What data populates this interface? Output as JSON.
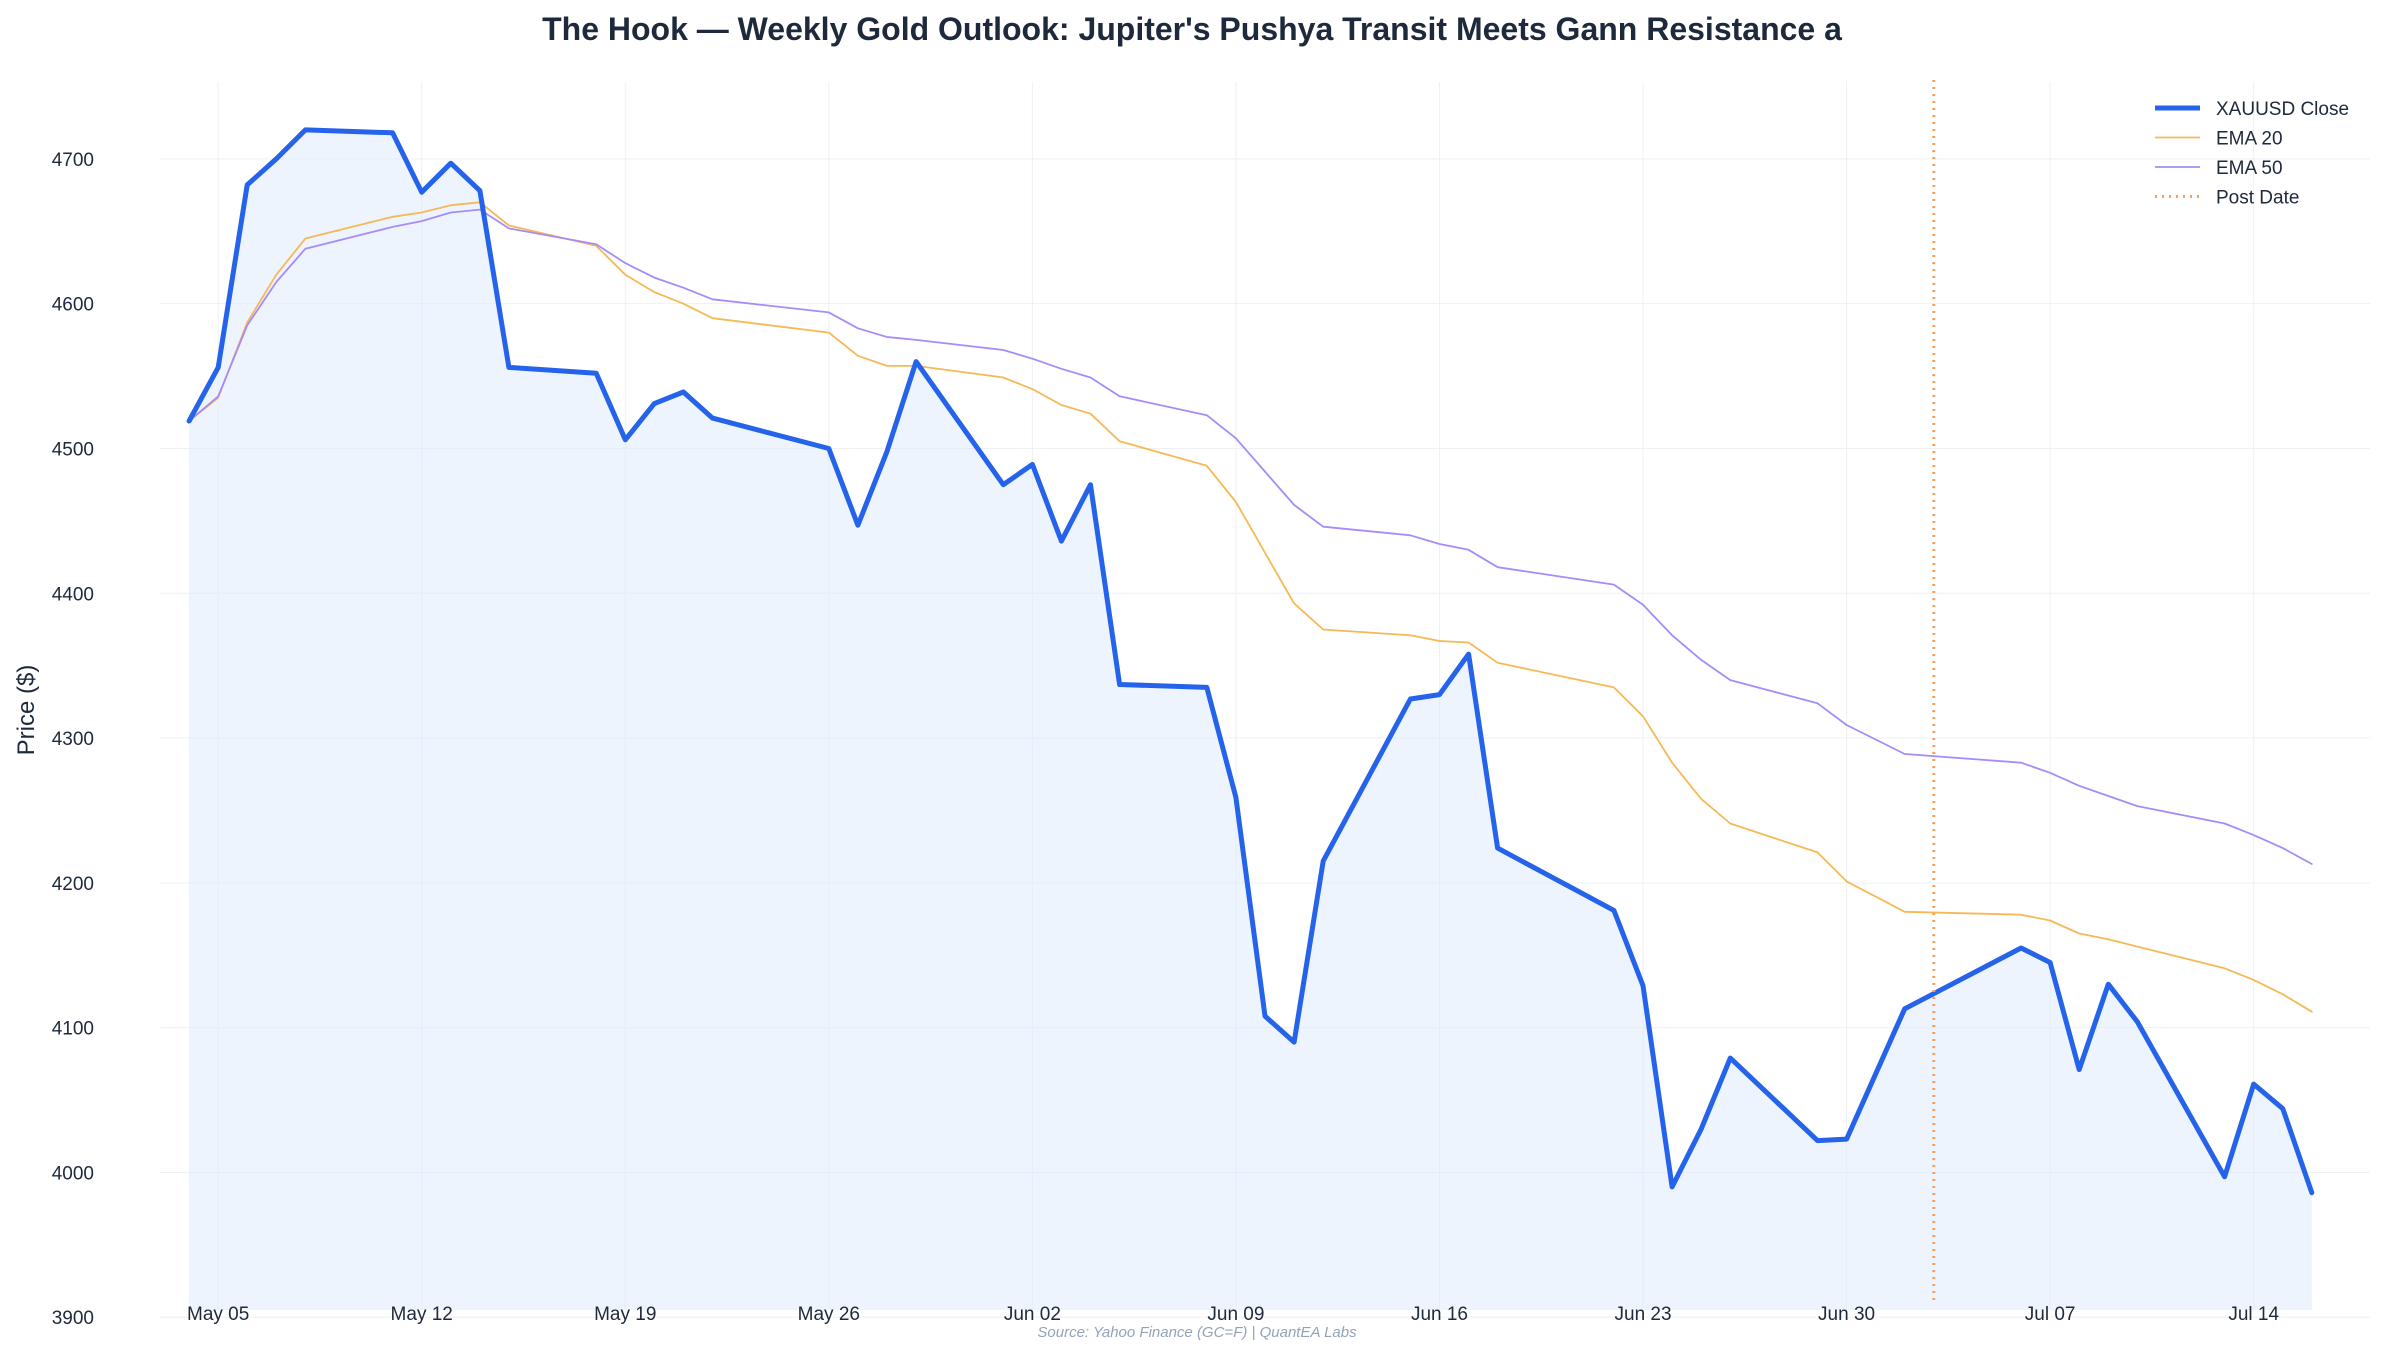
{
  "chart_data": {
    "type": "line",
    "title": "The Hook — Weekly Gold Outlook: Jupiter's Pushya Transit Meets Gann Resistance a",
    "xlabel": "",
    "ylabel": "Price ($)",
    "source": "Source: Yahoo Finance (GC=F) | QuantEA Labs",
    "ylim": [
      3905,
      4760
    ],
    "xlim": [
      "2025-05-03",
      "2025-07-18"
    ],
    "grid": true,
    "legend_position": "top-right",
    "x_ticks": [
      "2025-05-05",
      "2025-05-12",
      "2025-05-19",
      "2025-05-26",
      "2025-06-02",
      "2025-06-09",
      "2025-06-16",
      "2025-06-23",
      "2025-06-30",
      "2025-07-07",
      "2025-07-14"
    ],
    "x_tick_labels": [
      "May 05",
      "May 12",
      "May 19",
      "May 26",
      "Jun 02",
      "Jun 09",
      "Jun 16",
      "Jun 23",
      "Jun 30",
      "Jul 07",
      "Jul 14"
    ],
    "y_ticks": [
      3900,
      4000,
      4100,
      4200,
      4300,
      4400,
      4500,
      4600,
      4700
    ],
    "x": [
      "2025-05-04",
      "2025-05-05",
      "2025-05-06",
      "2025-05-07",
      "2025-05-08",
      "2025-05-11",
      "2025-05-12",
      "2025-05-13",
      "2025-05-14",
      "2025-05-15",
      "2025-05-18",
      "2025-05-19",
      "2025-05-20",
      "2025-05-21",
      "2025-05-22",
      "2025-05-26",
      "2025-05-27",
      "2025-05-28",
      "2025-05-29",
      "2025-06-01",
      "2025-06-02",
      "2025-06-03",
      "2025-06-04",
      "2025-06-05",
      "2025-06-08",
      "2025-06-09",
      "2025-06-10",
      "2025-06-11",
      "2025-06-12",
      "2025-06-15",
      "2025-06-16",
      "2025-06-17",
      "2025-06-18",
      "2025-06-22",
      "2025-06-23",
      "2025-06-24",
      "2025-06-25",
      "2025-06-26",
      "2025-06-29",
      "2025-06-30",
      "2025-07-02",
      "2025-07-06",
      "2025-07-07",
      "2025-07-08",
      "2025-07-09",
      "2025-07-10",
      "2025-07-13",
      "2025-07-14",
      "2025-07-15",
      "2025-07-16"
    ],
    "series": [
      {
        "name": "XAUUSD Close",
        "color": "#2563eb",
        "fill": true,
        "values": [
          4519,
          4556,
          4682,
          4700,
          4720,
          4718,
          4677,
          4697,
          4678,
          4556,
          4552,
          4506,
          4531,
          4539,
          4521,
          4500,
          4447,
          4498,
          4560,
          4475,
          4489,
          4436,
          4475,
          4337,
          4335,
          4259,
          4108,
          4090,
          4215,
          4327,
          4330,
          4358,
          4224,
          4181,
          4129,
          3990,
          4030,
          4079,
          4022,
          4023,
          4113,
          4155,
          4145,
          4071,
          4130,
          4104,
          3997,
          4061,
          4044,
          3986
        ]
      },
      {
        "name": "EMA 20",
        "color": "#f5b956",
        "values": [
          4519,
          4535,
          4587,
          4620,
          4645,
          4660,
          4663,
          4668,
          4670,
          4654,
          4640,
          4620,
          4608,
          4600,
          4590,
          4580,
          4564,
          4557,
          4557,
          4549,
          4541,
          4530,
          4524,
          4505,
          4488,
          4463,
          4428,
          4393,
          4375,
          4371,
          4367,
          4366,
          4352,
          4335,
          4315,
          4283,
          4258,
          4241,
          4221,
          4201,
          4180,
          4178,
          4174,
          4165,
          4161,
          4156,
          4141,
          4133,
          4123,
          4111
        ]
      },
      {
        "name": "EMA 50",
        "color": "#a78bfa",
        "values": [
          4519,
          4536,
          4585,
          4615,
          4638,
          4653,
          4657,
          4663,
          4665,
          4652,
          4641,
          4628,
          4618,
          4611,
          4603,
          4594,
          4583,
          4577,
          4575,
          4568,
          4562,
          4555,
          4549,
          4536,
          4523,
          4507,
          4484,
          4461,
          4446,
          4440,
          4434,
          4430,
          4418,
          4406,
          4392,
          4371,
          4354,
          4340,
          4324,
          4309,
          4289,
          4283,
          4276,
          4267,
          4260,
          4253,
          4241,
          4233,
          4224,
          4213
        ]
      }
    ],
    "reference_lines": [
      {
        "name": "Post Date",
        "x": "2025-07-03",
        "color": "#f4a261",
        "style": "dotted"
      }
    ]
  }
}
